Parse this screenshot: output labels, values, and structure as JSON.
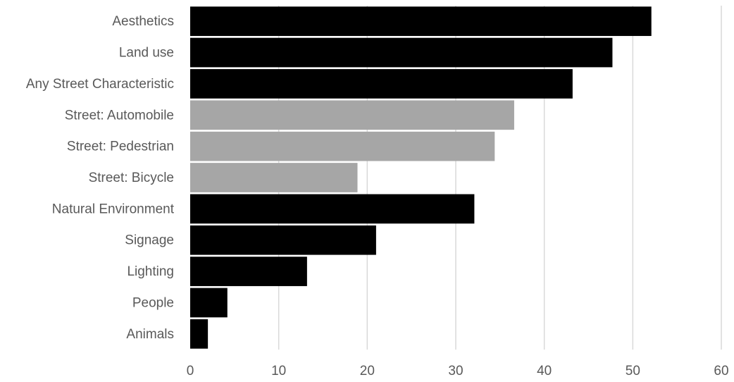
{
  "chart_data": {
    "type": "bar",
    "orientation": "horizontal",
    "title": "",
    "xlabel": "",
    "ylabel": "",
    "xlim": [
      0,
      60
    ],
    "xticks": [
      0,
      10,
      20,
      30,
      40,
      50,
      60
    ],
    "grid": "vertical",
    "legend": "none",
    "categories": [
      "Aesthetics",
      "Land use",
      "Any Street Characteristic",
      "Street: Automobile",
      "Street: Pedestrian",
      "Street: Bicycle",
      "Natural Environment",
      "Signage",
      "Lighting",
      "People",
      "Animals"
    ],
    "values": [
      52.1,
      47.7,
      43.2,
      36.6,
      34.4,
      18.9,
      32.1,
      21.0,
      13.2,
      4.2,
      2.0
    ],
    "bar_colors": [
      "#000000",
      "#000000",
      "#000000",
      "#a6a6a6",
      "#a6a6a6",
      "#a6a6a6",
      "#000000",
      "#000000",
      "#000000",
      "#000000",
      "#000000"
    ],
    "colors": {
      "primary": "#000000",
      "street": "#a6a6a6",
      "grid": "#d9d9d9",
      "text": "#595959"
    }
  }
}
